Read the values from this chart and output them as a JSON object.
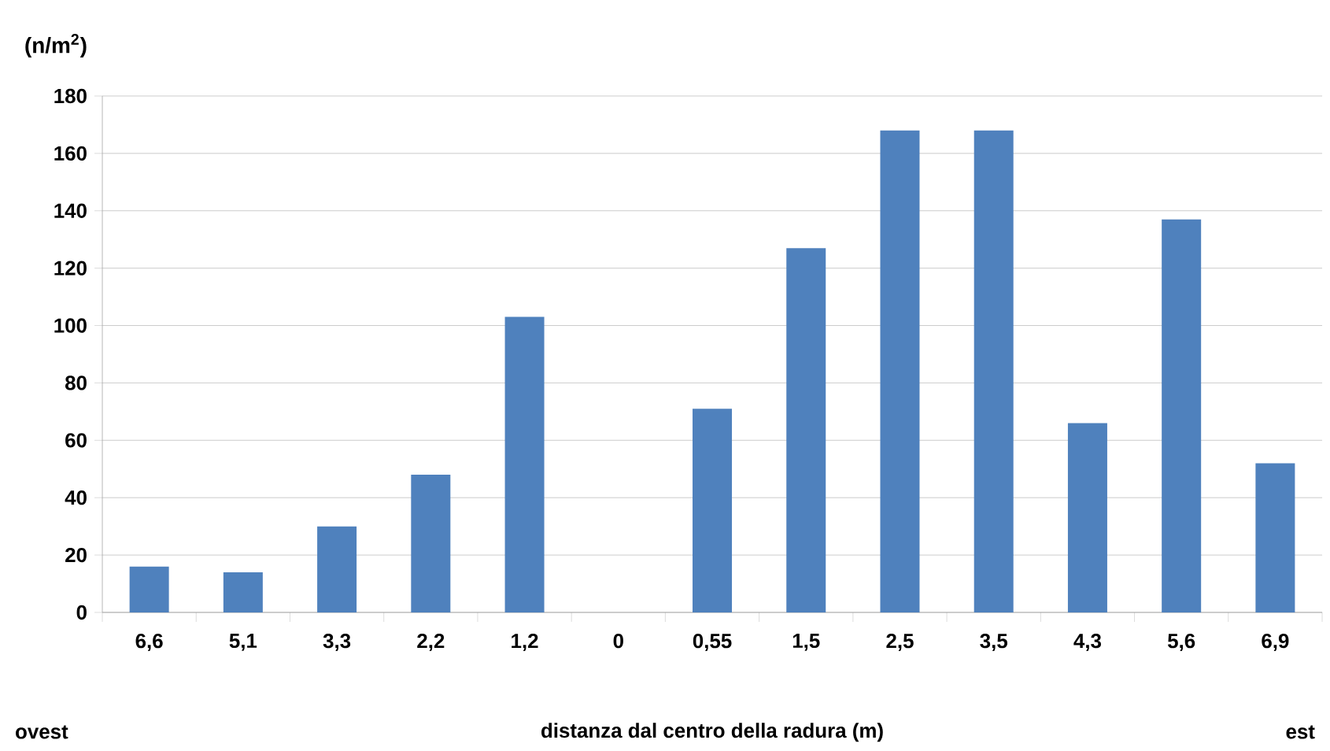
{
  "chart_data": {
    "type": "bar",
    "ylabel": "(n/m$^{2}$)",
    "xlabel": "distanza dal centro della radura (m)",
    "annotations": [
      "ovest",
      "est"
    ],
    "categories": [
      "6,6",
      "5,1",
      "3,3",
      "2,2",
      "1,2",
      "0",
      "0,55",
      "1,5",
      "2,5",
      "3,5",
      "4,3",
      "5,6",
      "6,9"
    ],
    "values": [
      16,
      14,
      30,
      48,
      103,
      0,
      71,
      127,
      168,
      168,
      66,
      137,
      52
    ],
    "color": "#4f81bd",
    "ylim": [
      0,
      180
    ],
    "yticks": [
      0,
      20,
      40,
      60,
      80,
      100,
      120,
      140,
      160,
      180
    ],
    "grid": "y"
  }
}
